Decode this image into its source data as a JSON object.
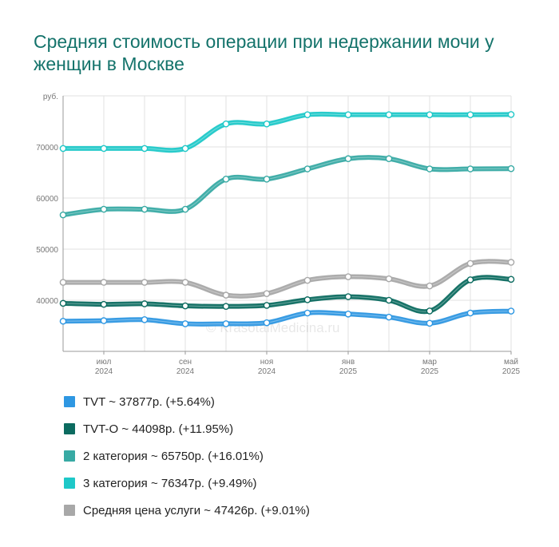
{
  "title": "Средняя стоимость операции при недержании мочи у женщин в Москве",
  "watermark": "© KrasotaiMedicina.ru",
  "chart_data": {
    "type": "line",
    "ylabel": "руб.",
    "ylim": [
      30000,
      80000
    ],
    "yticks": [
      40000,
      50000,
      60000,
      70000
    ],
    "x_months": [
      "2024-06",
      "2024-07",
      "2024-08",
      "2024-09",
      "2024-10",
      "2024-11",
      "2024-12",
      "2025-01",
      "2025-02",
      "2025-03",
      "2025-04",
      "2025-05"
    ],
    "x_tick_labels": [
      {
        "month": "2024-07",
        "line1": "июл",
        "line2": "2024"
      },
      {
        "month": "2024-09",
        "line1": "сен",
        "line2": "2024"
      },
      {
        "month": "2024-11",
        "line1": "ноя",
        "line2": "2024"
      },
      {
        "month": "2025-01",
        "line1": "янв",
        "line2": "2025"
      },
      {
        "month": "2025-03",
        "line1": "мар",
        "line2": "2025"
      },
      {
        "month": "2025-05",
        "line1": "май",
        "line2": "2025"
      }
    ],
    "grid": true,
    "series": [
      {
        "name": "3 категория",
        "color": "#1ec8c8",
        "values": [
          69700,
          69700,
          69700,
          69700,
          74500,
          74500,
          76300,
          76300,
          76300,
          76300,
          76300,
          76347
        ]
      },
      {
        "name": "2 категория",
        "color": "#38aaa4",
        "values": [
          56700,
          57800,
          57800,
          57800,
          63700,
          63700,
          65700,
          67700,
          67700,
          65700,
          65700,
          65750
        ]
      },
      {
        "name": "Средняя цена услуги",
        "color": "#a8a8a8",
        "values": [
          43500,
          43500,
          43500,
          43500,
          41000,
          41300,
          43900,
          44600,
          44200,
          42800,
          47200,
          47426
        ]
      },
      {
        "name": "TVT-O",
        "color": "#0c6b60",
        "values": [
          39400,
          39200,
          39300,
          38900,
          38800,
          39000,
          40100,
          40700,
          40000,
          37900,
          44000,
          44098
        ]
      },
      {
        "name": "TVT",
        "color": "#2e97e2",
        "values": [
          35900,
          36000,
          36200,
          35400,
          35400,
          35600,
          37500,
          37300,
          36700,
          35500,
          37500,
          37877
        ]
      }
    ],
    "legend": [
      {
        "label": "TVT ~ 37877р. (+5.64%)",
        "color": "#2e97e2"
      },
      {
        "label": "TVT-O ~ 44098р. (+11.95%)",
        "color": "#0c6b60"
      },
      {
        "label": "2 категория ~ 65750р. (+16.01%)",
        "color": "#38aaa4"
      },
      {
        "label": "3 категория ~ 76347р. (+9.49%)",
        "color": "#1ec8c8"
      },
      {
        "label": "Средняя цена услуги ~ 47426р. (+9.01%)",
        "color": "#a8a8a8"
      }
    ],
    "legend_position": "bottom"
  }
}
